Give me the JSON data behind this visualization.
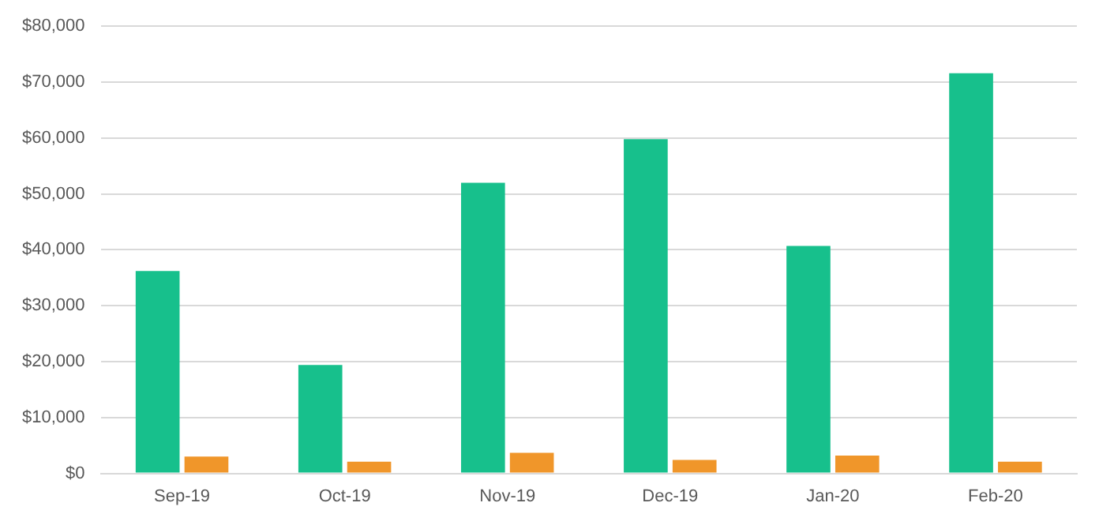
{
  "chart_data": {
    "type": "bar",
    "categories": [
      "Sep-19",
      "Oct-19",
      "Nov-19",
      "Dec-19",
      "Jan-20",
      "Feb-20"
    ],
    "series": [
      {
        "color": "#17c08c",
        "values": [
          36200,
          19400,
          52000,
          59800,
          40700,
          71600
        ]
      },
      {
        "color": "#f0962a",
        "values": [
          3000,
          2100,
          3700,
          2400,
          3200,
          2100
        ]
      }
    ],
    "ylim": [
      0,
      80000
    ],
    "yticks": [
      {
        "value": 0,
        "label": "$0"
      },
      {
        "value": 10000,
        "label": "$10,000"
      },
      {
        "value": 20000,
        "label": "$20,000"
      },
      {
        "value": 30000,
        "label": "$30,000"
      },
      {
        "value": 40000,
        "label": "$40,000"
      },
      {
        "value": 50000,
        "label": "$50,000"
      },
      {
        "value": 60000,
        "label": "$60,000"
      },
      {
        "value": 70000,
        "label": "$70,000"
      },
      {
        "value": 80000,
        "label": "$80,000"
      }
    ],
    "grid": "y",
    "legend": false
  }
}
